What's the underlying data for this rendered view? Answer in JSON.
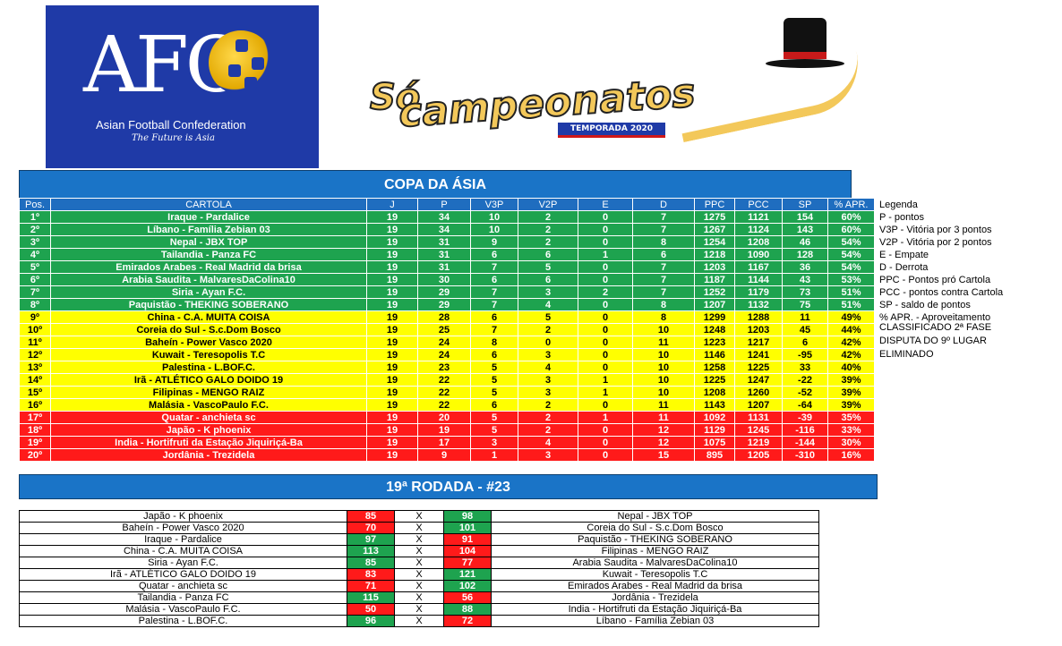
{
  "afc_logo": {
    "letters": "AFC",
    "name": "Asian Football Confederation",
    "tagline": "The Future is Asia"
  },
  "sc_logo": {
    "so": "Só",
    "brand": "campeonatos",
    "season": "TEMPORADA 2020"
  },
  "standings": {
    "title": "COPA DA ÁSIA",
    "headers": [
      "Pos.",
      "CARTOLA",
      "J",
      "P",
      "V3P",
      "V2P",
      "E",
      "D",
      "PPC",
      "PCC",
      "SP",
      "% APR."
    ],
    "rows": [
      [
        "1º",
        "Iraque - Pardalice",
        "19",
        "34",
        "10",
        "2",
        "0",
        "7",
        "1275",
        "1121",
        "154",
        "60%"
      ],
      [
        "2º",
        "Líbano - Família Zebian 03",
        "19",
        "34",
        "10",
        "2",
        "0",
        "7",
        "1267",
        "1124",
        "143",
        "60%"
      ],
      [
        "3º",
        "Nepal - JBX TOP",
        "19",
        "31",
        "9",
        "2",
        "0",
        "8",
        "1254",
        "1208",
        "46",
        "54%"
      ],
      [
        "4º",
        "Tailandia - Panza FC",
        "19",
        "31",
        "6",
        "6",
        "1",
        "6",
        "1218",
        "1090",
        "128",
        "54%"
      ],
      [
        "5º",
        "Emirados Arabes - Real Madrid da brisa",
        "19",
        "31",
        "7",
        "5",
        "0",
        "7",
        "1203",
        "1167",
        "36",
        "54%"
      ],
      [
        "6º",
        "Arabia Saudita - MalvaresDaColina10",
        "19",
        "30",
        "6",
        "6",
        "0",
        "7",
        "1187",
        "1144",
        "43",
        "53%"
      ],
      [
        "7º",
        "Siria - Ayan F.C.",
        "19",
        "29",
        "7",
        "3",
        "2",
        "7",
        "1252",
        "1179",
        "73",
        "51%"
      ],
      [
        "8º",
        "Paquistão - THEKING SOBERANO",
        "19",
        "29",
        "7",
        "4",
        "0",
        "8",
        "1207",
        "1132",
        "75",
        "51%"
      ],
      [
        "9º",
        "China - C.A. MUITA COISA",
        "19",
        "28",
        "6",
        "5",
        "0",
        "8",
        "1299",
        "1288",
        "11",
        "49%"
      ],
      [
        "10º",
        "Coreia do Sul - S.c.Dom Bosco",
        "19",
        "25",
        "7",
        "2",
        "0",
        "10",
        "1248",
        "1203",
        "45",
        "44%"
      ],
      [
        "11º",
        "Baheín - Power Vasco 2020",
        "19",
        "24",
        "8",
        "0",
        "0",
        "11",
        "1223",
        "1217",
        "6",
        "42%"
      ],
      [
        "12º",
        "Kuwait - Teresopolis T.C",
        "19",
        "24",
        "6",
        "3",
        "0",
        "10",
        "1146",
        "1241",
        "-95",
        "42%"
      ],
      [
        "13º",
        "Palestina - L.BOF.C.",
        "19",
        "23",
        "5",
        "4",
        "0",
        "10",
        "1258",
        "1225",
        "33",
        "40%"
      ],
      [
        "14º",
        "Irã - ATLÉTICO GALO DOIDO 19",
        "19",
        "22",
        "5",
        "3",
        "1",
        "10",
        "1225",
        "1247",
        "-22",
        "39%"
      ],
      [
        "15º",
        "Filipinas - MENGO RAIZ",
        "19",
        "22",
        "5",
        "3",
        "1",
        "10",
        "1208",
        "1260",
        "-52",
        "39%"
      ],
      [
        "16º",
        "Malásia - VascoPaulo F.C.",
        "19",
        "22",
        "6",
        "2",
        "0",
        "11",
        "1143",
        "1207",
        "-64",
        "39%"
      ],
      [
        "17º",
        "Quatar - anchieta sc",
        "19",
        "20",
        "5",
        "2",
        "1",
        "11",
        "1092",
        "1131",
        "-39",
        "35%"
      ],
      [
        "18º",
        "Japão - K phoenix",
        "19",
        "19",
        "5",
        "2",
        "0",
        "12",
        "1129",
        "1245",
        "-116",
        "33%"
      ],
      [
        "19º",
        "India - Hortifruti da Estação Jiquiriçá-Ba",
        "19",
        "17",
        "3",
        "4",
        "0",
        "12",
        "1075",
        "1219",
        "-144",
        "30%"
      ],
      [
        "20º",
        "Jordânia - Trezidela",
        "19",
        "9",
        "1",
        "3",
        "0",
        "15",
        "895",
        "1205",
        "-310",
        "16%"
      ]
    ],
    "row_status": [
      "g",
      "g",
      "g",
      "g",
      "g",
      "g",
      "g",
      "g",
      "y",
      "y",
      "y",
      "y",
      "y",
      "y",
      "y",
      "y",
      "r",
      "r",
      "r",
      "r"
    ]
  },
  "legend": {
    "title": "Legenda",
    "items": [
      "P - pontos",
      "V3P - Vitória por 3 pontos",
      "V2P - Vitória por 2 pontos",
      "E - Empate",
      "D - Derrota",
      "PPC - Pontos pró Cartola",
      "PCC - pontos contra Cartola",
      "SP - saldo de pontos",
      "% APR. - Aproveitamento"
    ],
    "swatches": [
      {
        "label": "CLASSIFICADO 2ª FASE",
        "color": "#1ea34f"
      },
      {
        "label": "DISPUTA DO 9º LUGAR",
        "color": "#ffff00"
      },
      {
        "label": "ELIMINADO",
        "color": "#ff1a1a"
      }
    ]
  },
  "round": {
    "title": "19ª RODADA - #23",
    "separator": "X",
    "matches": [
      {
        "home": "Japão - K phoenix",
        "home_score": "85",
        "away_score": "98",
        "away": "Nepal - JBX TOP"
      },
      {
        "home": "Baheín - Power Vasco 2020",
        "home_score": "70",
        "away_score": "101",
        "away": "Coreia do Sul - S.c.Dom Bosco"
      },
      {
        "home": "Iraque - Pardalice",
        "home_score": "97",
        "away_score": "91",
        "away": "Paquistão - THEKING SOBERANO"
      },
      {
        "home": "China - C.A. MUITA COISA",
        "home_score": "113",
        "away_score": "104",
        "away": "Filipinas - MENGO RAIZ"
      },
      {
        "home": "Siria - Ayan F.C.",
        "home_score": "85",
        "away_score": "77",
        "away": "Arabia Saudita - MalvaresDaColina10"
      },
      {
        "home": "Irã - ATLÉTICO GALO DOIDO 19",
        "home_score": "83",
        "away_score": "121",
        "away": "Kuwait - Teresopolis T.C"
      },
      {
        "home": "Quatar - anchieta sc",
        "home_score": "71",
        "away_score": "102",
        "away": "Emirados Arabes - Real Madrid da brisa"
      },
      {
        "home": "Tailandia - Panza FC",
        "home_score": "115",
        "away_score": "56",
        "away": "Jordânia - Trezidela"
      },
      {
        "home": "Malásia - VascoPaulo F.C.",
        "home_score": "50",
        "away_score": "88",
        "away": "India - Hortifruti da Estação Jiquiriçá-Ba"
      },
      {
        "home": "Palestina - L.BOF.C.",
        "home_score": "96",
        "away_score": "72",
        "away": "Líbano - Família Zebian 03"
      }
    ]
  }
}
